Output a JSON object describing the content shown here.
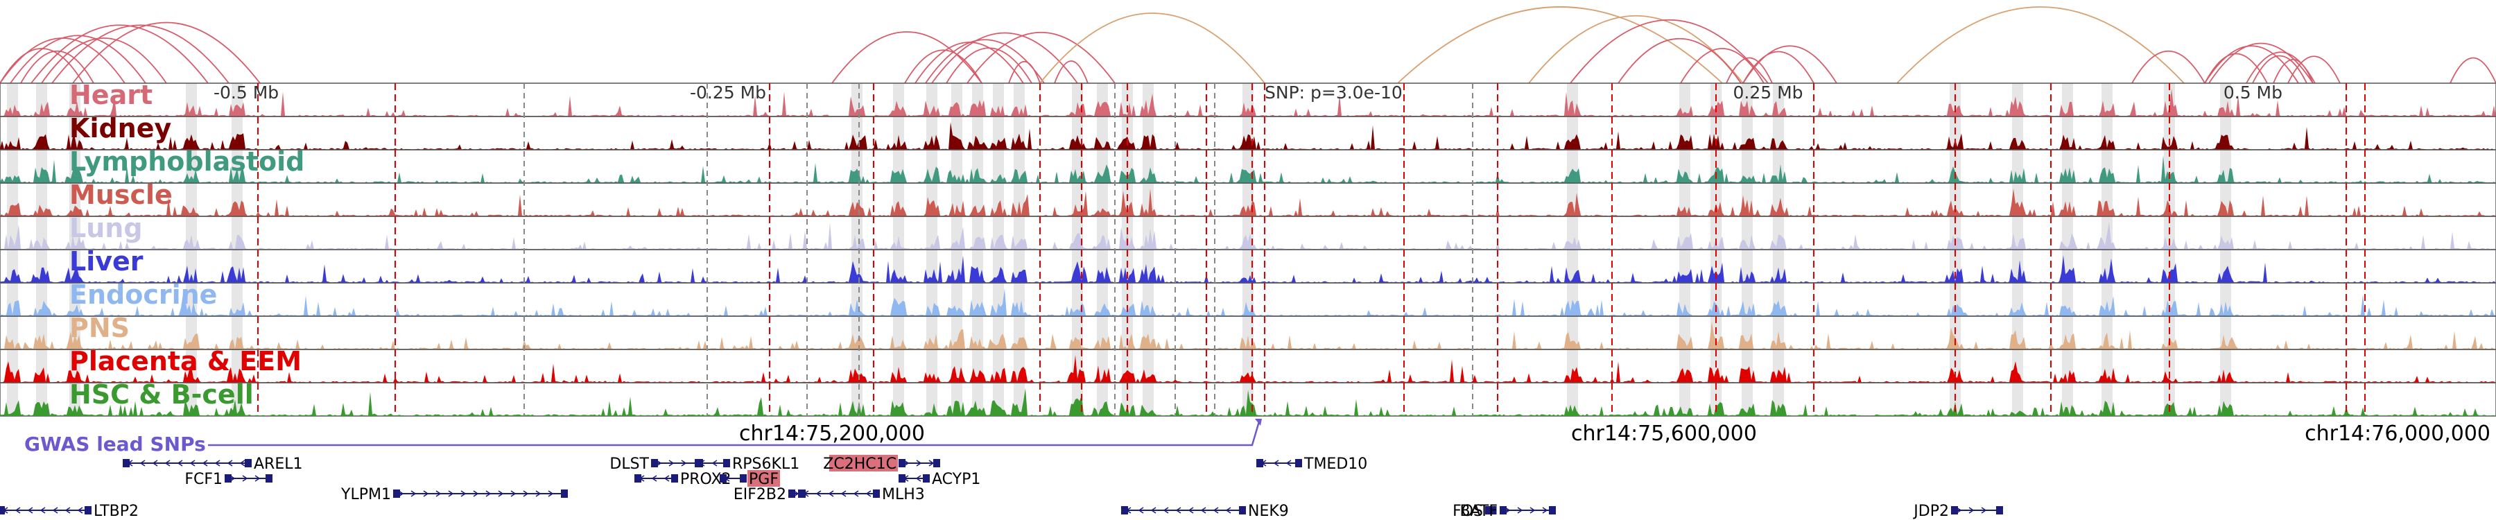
{
  "chart_data": {
    "type": "area",
    "chromosome": "chr14",
    "x_range": [
      74800000,
      76000000
    ],
    "center": 75400000,
    "region_ticks": [
      {
        "offset": -0.5,
        "label": "-0.5 Mb"
      },
      {
        "offset": -0.25,
        "label": "-0.25 Mb"
      },
      {
        "offset": 0.25,
        "label": "0.25 Mb"
      },
      {
        "offset": 0.5,
        "label": "0.5 Mb"
      }
    ],
    "coordinate_ticks": [
      {
        "pos": 75200000,
        "label": "chr14:75,200,000"
      },
      {
        "pos": 75600000,
        "label": "chr14:75,600,000"
      },
      {
        "pos": 76000000,
        "label": "chr14:76,000,000"
      }
    ],
    "snp": {
      "pos": 75406000,
      "label": "SNP: p=3.0e-10"
    },
    "gwas_label": "GWAS lead SNPs",
    "series": [
      {
        "name": "Heart",
        "color": "#d56a76"
      },
      {
        "name": "Kidney",
        "color": "#7a0000"
      },
      {
        "name": "Lymphoblastoid",
        "color": "#3f9a80"
      },
      {
        "name": "Muscle",
        "color": "#cc5a50"
      },
      {
        "name": "Lung",
        "color": "#c8c8e6"
      },
      {
        "name": "Liver",
        "color": "#3a3ad6"
      },
      {
        "name": "Endocrine",
        "color": "#8fb8f0"
      },
      {
        "name": "PNS",
        "color": "#e0b088"
      },
      {
        "name": "Placenta & EEM",
        "color": "#e00000"
      },
      {
        "name": "HSC & B-cell",
        "color": "#3a9a30"
      }
    ],
    "red_dashed_lines": [
      74924000,
      74990000,
      75170000,
      75220000,
      75300000,
      75320000,
      75342000,
      75380000,
      75402000,
      75408000,
      75475000,
      75520000,
      75575000,
      75625000,
      75672000,
      75740000,
      75786000,
      75843000,
      75928000,
      75937000
    ],
    "gray_dashed_lines": [
      75052000,
      75140000,
      75188000,
      75213000,
      75336000,
      75365000,
      75384000,
      75508000
    ],
    "highlight_regions": [
      74806000,
      74820000,
      74836000,
      74892000,
      74914000,
      75212000,
      75232000,
      75248000,
      75260000,
      75270000,
      75280000,
      75290000,
      75318000,
      75330000,
      75342000,
      75352000,
      75400000,
      75556000,
      75610000,
      75625000,
      75640000,
      75655000,
      75740000,
      75770000,
      75794000,
      75813000,
      75843000,
      75870000
    ],
    "loops": [
      [
        74800000,
        74840000
      ],
      [
        74800000,
        74860000
      ],
      [
        74805000,
        74870000
      ],
      [
        74810000,
        74845000
      ],
      [
        74815000,
        74900000
      ],
      [
        74820000,
        74880000
      ],
      [
        74825000,
        74910000
      ],
      [
        74835000,
        74925000
      ],
      [
        75200000,
        75272000
      ],
      [
        75235000,
        75272000
      ],
      [
        75240000,
        75292000
      ],
      [
        75245000,
        75302000
      ],
      [
        75248000,
        75318000
      ],
      [
        75255000,
        75296000
      ],
      [
        75265000,
        75336000
      ],
      [
        75285000,
        75300000
      ],
      [
        75300000,
        75408000
      ],
      [
        75307000,
        75323000
      ],
      [
        75472000,
        75628000
      ],
      [
        75535000,
        75638000
      ],
      [
        75555000,
        75650000
      ],
      [
        75578000,
        75637000
      ],
      [
        75608000,
        75648000
      ],
      [
        75630000,
        75652000
      ],
      [
        75638000,
        75672000
      ],
      [
        75638000,
        75683000
      ],
      [
        75712000,
        75850000
      ],
      [
        75825000,
        75860000
      ],
      [
        75860000,
        75890000
      ],
      [
        75860000,
        75905000
      ],
      [
        75862000,
        75912000
      ],
      [
        75880000,
        75913000
      ],
      [
        75883000,
        75909000
      ],
      [
        75893000,
        75912000
      ],
      [
        75900000,
        75925000
      ],
      [
        75978000,
        76000000
      ]
    ]
  },
  "genes": [
    {
      "name": "AREL1",
      "start": 74860000,
      "end": 74920000,
      "row": 0,
      "strand": "-",
      "label_pos": "right"
    },
    {
      "name": "FCF1",
      "start": 74909000,
      "end": 74930000,
      "row": 1,
      "strand": "+",
      "label_pos": "left"
    },
    {
      "name": "YLPM1",
      "start": 74990000,
      "end": 75072000,
      "row": 2,
      "strand": "+",
      "label_pos": "left"
    },
    {
      "name": "LTBP2",
      "start": 74800000,
      "end": 74843000,
      "row": 3,
      "strand": "-",
      "label_pos": "right"
    },
    {
      "name": "DLST",
      "start": 75114000,
      "end": 75137000,
      "row": 0,
      "strand": "+",
      "label_pos": "left"
    },
    {
      "name": "PROX2",
      "start": 75106000,
      "end": 75125000,
      "row": 1,
      "strand": "-",
      "label_pos": "right"
    },
    {
      "name": "RPS6KL1",
      "start": 75135000,
      "end": 75150000,
      "row": 0,
      "strand": "-",
      "label_pos": "right"
    },
    {
      "name": "PGF",
      "start": 75147000,
      "end": 75158000,
      "row": 1,
      "strand": "-",
      "label_pos": "right",
      "highlight": true
    },
    {
      "name": "EIF2B2",
      "start": 75180000,
      "end": 75186000,
      "row": 2,
      "strand": "+",
      "label_pos": "left"
    },
    {
      "name": "MLH3",
      "start": 75185000,
      "end": 75222000,
      "row": 2,
      "strand": "-",
      "label_pos": "right"
    },
    {
      "name": "ZC2HC1C",
      "start": 75233000,
      "end": 75251000,
      "row": 0,
      "strand": "+",
      "label_pos": "left",
      "highlight": true
    },
    {
      "name": "ACYP1",
      "start": 75233000,
      "end": 75246000,
      "row": 1,
      "strand": "-",
      "label_pos": "right"
    },
    {
      "name": "TMED10",
      "start": 75405000,
      "end": 75425000,
      "row": 0,
      "strand": "-",
      "label_pos": "right"
    },
    {
      "name": "NEK9",
      "start": 75340000,
      "end": 75398000,
      "row": 3,
      "strand": "-",
      "label_pos": "right"
    },
    {
      "name": "FOS",
      "start": 75515000,
      "end": 75518500,
      "row": 3,
      "strand": "+",
      "label_pos": "left"
    },
    {
      "name": "JDP2",
      "start": 75739000,
      "end": 75762000,
      "row": 3,
      "strand": "+",
      "label_pos": "left"
    },
    {
      "name": "BATF",
      "start": 75522000,
      "end": 75547000,
      "row": 3,
      "strand": "+",
      "label_pos": "left"
    }
  ],
  "colors": {
    "highlight_gene_bg": "#d9707c",
    "gene_body": "#1b1b7a",
    "loop": "#d85b6a",
    "loop_long": "#d9a070",
    "red_line": "#e00000",
    "gray_line": "#888888",
    "gwas": "#6a5acd"
  }
}
